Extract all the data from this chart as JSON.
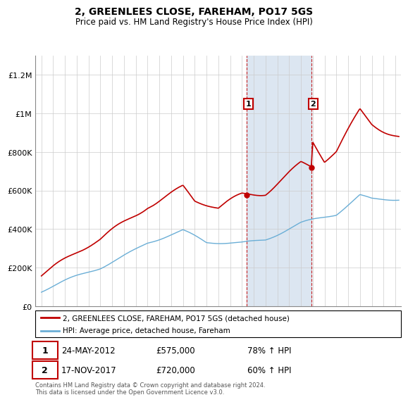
{
  "title": "2, GREENLEES CLOSE, FAREHAM, PO17 5GS",
  "subtitle": "Price paid vs. HM Land Registry's House Price Index (HPI)",
  "hpi_label": "HPI: Average price, detached house, Fareham",
  "property_label": "2, GREENLEES CLOSE, FAREHAM, PO17 5GS (detached house)",
  "footer": "Contains HM Land Registry data © Crown copyright and database right 2024.\nThis data is licensed under the Open Government Licence v3.0.",
  "sale1": {
    "label": "1",
    "date": "24-MAY-2012",
    "price": 575000,
    "hpi_pct": "78% ↑ HPI",
    "x": 2012.385
  },
  "sale2": {
    "label": "2",
    "date": "17-NOV-2017",
    "price": 720000,
    "hpi_pct": "60% ↑ HPI",
    "x": 2017.878
  },
  "hpi_color": "#6aaed6",
  "price_color": "#c00000",
  "shade_color": "#dce6f1",
  "annotation_box_color": "#c00000",
  "ylim": [
    0,
    1300000
  ],
  "xlim_start": 1994.5,
  "xlim_end": 2025.5,
  "yticks": [
    0,
    200000,
    400000,
    600000,
    800000,
    1000000,
    1200000
  ],
  "ytick_labels": [
    "£0",
    "£200K",
    "£400K",
    "£600K",
    "£800K",
    "£1M",
    "£1.2M"
  ],
  "xticks": [
    1995,
    1996,
    1997,
    1998,
    1999,
    2000,
    2001,
    2002,
    2003,
    2004,
    2005,
    2006,
    2007,
    2008,
    2009,
    2010,
    2011,
    2012,
    2013,
    2014,
    2015,
    2016,
    2017,
    2018,
    2019,
    2020,
    2021,
    2022,
    2023,
    2024,
    2025
  ],
  "sale1_y": 575000,
  "sale2_y": 720000
}
